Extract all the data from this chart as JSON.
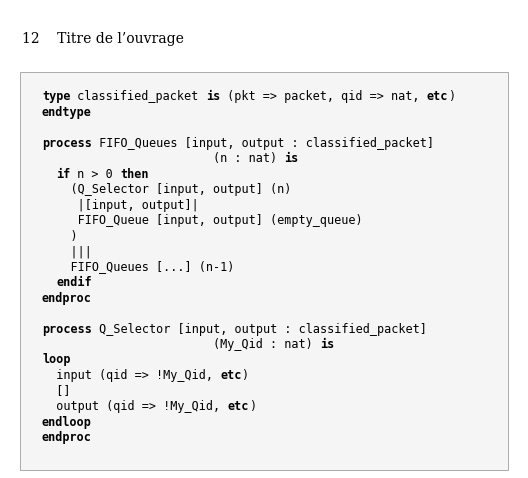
{
  "header_text": "12    Titre de l’ouvrage",
  "fig_w": 5.28,
  "fig_h": 4.78,
  "dpi": 100,
  "fig_bg": "#ffffff",
  "box_bg": "#f5f5f5",
  "box_edge": "#aaaaaa",
  "header_fontsize": 10,
  "code_fontsize": 8.5,
  "lines": [
    [
      [
        "type",
        true
      ],
      [
        " classified_packet ",
        false
      ],
      [
        "is",
        true
      ],
      [
        " (pkt => packet, qid => nat, ",
        false
      ],
      [
        "etc",
        true
      ],
      [
        ")",
        false
      ]
    ],
    [
      [
        "endtype",
        true
      ]
    ],
    [],
    [
      [
        "process",
        true
      ],
      [
        " FIFO_Queues [input, output : classified_packet]",
        false
      ]
    ],
    [
      [
        "                        (n : nat) ",
        false
      ],
      [
        "is",
        true
      ]
    ],
    [
      [
        "  ",
        false
      ],
      [
        "if",
        true
      ],
      [
        " n > 0 ",
        false
      ],
      [
        "then",
        true
      ]
    ],
    [
      [
        "    (Q_Selector [input, output] (n)",
        false
      ]
    ],
    [
      [
        "     |[input, output]|",
        false
      ]
    ],
    [
      [
        "     FIFO_Queue [input, output] (empty_queue)",
        false
      ]
    ],
    [
      [
        "    )",
        false
      ]
    ],
    [
      [
        "    |||",
        false
      ]
    ],
    [
      [
        "    FIFO_Queues [...] (n-1)",
        false
      ]
    ],
    [
      [
        "  ",
        false
      ],
      [
        "endif",
        true
      ]
    ],
    [
      [
        "",
        false
      ],
      [
        "endproc",
        true
      ]
    ],
    [],
    [
      [
        "process",
        true
      ],
      [
        " Q_Selector [input, output : classified_packet]",
        false
      ]
    ],
    [
      [
        "                        (My_Qid : nat) ",
        false
      ],
      [
        "is",
        true
      ]
    ],
    [
      [
        "",
        false
      ],
      [
        "loop",
        true
      ]
    ],
    [
      [
        "  input (qid => !My_Qid, ",
        false
      ],
      [
        "etc",
        true
      ],
      [
        ")",
        false
      ]
    ],
    [
      [
        "  []",
        false
      ]
    ],
    [
      [
        "  output (qid => !My_Qid, ",
        false
      ],
      [
        "etc",
        true
      ],
      [
        ")",
        false
      ]
    ],
    [
      [
        "",
        false
      ],
      [
        "endloop",
        true
      ]
    ],
    [
      [
        "",
        false
      ],
      [
        "endproc",
        true
      ]
    ]
  ]
}
